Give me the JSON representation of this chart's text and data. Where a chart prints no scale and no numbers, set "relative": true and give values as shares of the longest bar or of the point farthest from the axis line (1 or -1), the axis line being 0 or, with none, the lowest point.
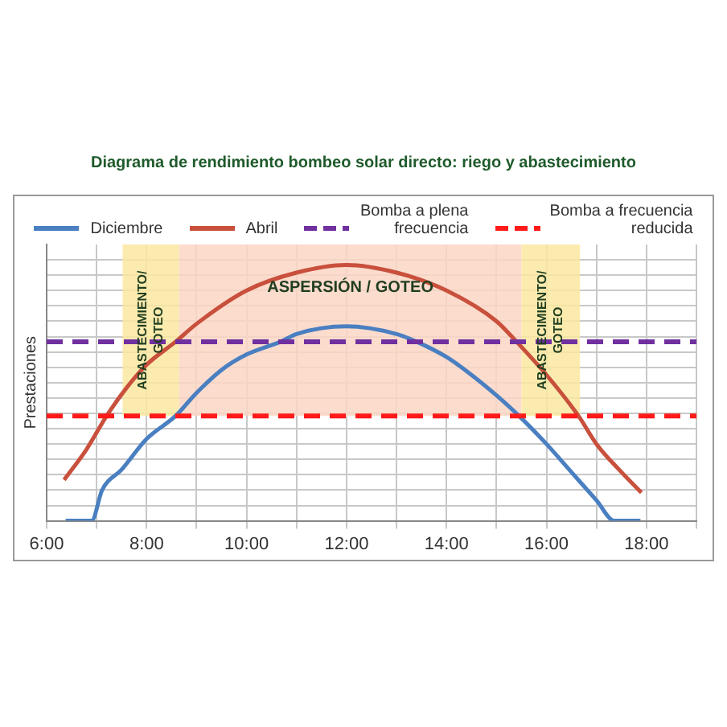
{
  "chart_data": {
    "type": "line",
    "title": "Diagrama de rendimiento bombeo solar directo: riego y abastecimiento",
    "ylabel": "Prestaciones",
    "relative": true,
    "xlim": [
      6,
      19
    ],
    "xticks": [
      {
        "value": 6,
        "label": "6:00"
      },
      {
        "value": 7,
        "label": null
      },
      {
        "value": 8,
        "label": "8:00"
      },
      {
        "value": 9,
        "label": null
      },
      {
        "value": 10,
        "label": "10:00"
      },
      {
        "value": 11,
        "label": null
      },
      {
        "value": 12,
        "label": "12:00"
      },
      {
        "value": 13,
        "label": null
      },
      {
        "value": 14,
        "label": "14:00"
      },
      {
        "value": 15,
        "label": null
      },
      {
        "value": 16,
        "label": "16:00"
      },
      {
        "value": 17,
        "label": null
      },
      {
        "value": 18,
        "label": "18:00"
      },
      {
        "value": 19,
        "label": null
      }
    ],
    "series": [
      {
        "name": "Diciembre",
        "color": "#4a7fc1",
        "x": [
          6.38,
          6.9,
          7.11,
          7.5,
          8,
          8.58,
          9,
          9.5,
          10,
          10.68,
          11,
          12,
          13,
          13.4,
          14,
          14.5,
          15,
          15.45,
          16,
          16.5,
          17,
          17.36,
          17.88
        ],
        "values": [
          0,
          0,
          0.12,
          0.2,
          0.32,
          0.41,
          0.5,
          0.59,
          0.65,
          0.7,
          0.73,
          0.76,
          0.73,
          0.7,
          0.64,
          0.57,
          0.49,
          0.41,
          0.3,
          0.19,
          0.08,
          0,
          0
        ]
      },
      {
        "name": "Abril",
        "color": "#c8503c",
        "x": [
          6.35,
          6.8,
          7.2,
          7.6,
          8,
          8.58,
          9,
          10,
          11,
          12,
          13,
          14,
          15,
          15.4,
          16,
          16.64,
          17,
          17.5,
          17.9
        ],
        "values": [
          0.16,
          0.28,
          0.41,
          0.52,
          0.61,
          0.7,
          0.77,
          0.9,
          0.97,
          1,
          0.97,
          0.9,
          0.78,
          0.7,
          0.57,
          0.41,
          0.3,
          0.19,
          0.11
        ]
      }
    ],
    "ref_lines": [
      {
        "axis": "y",
        "value": 0.7,
        "label": "Bomba a plena frecuencia",
        "color": "#7030a0",
        "line_style": "dashed"
      },
      {
        "axis": "y",
        "value": 0.41,
        "label": "Bomba a frecuencia reducida",
        "color": "#ff1a1a",
        "line_style": "dashed"
      }
    ],
    "bands": [
      {
        "axis": "x",
        "from": 7.52,
        "to": 8.65,
        "label": "ABASTECIMIENTO/ GOTEO",
        "color": "#fbe7a1"
      },
      {
        "axis": "x",
        "from": 8.65,
        "to": 15.5,
        "label": "ASPERSIÓN / GOTEO",
        "color": "#fbd6c4"
      },
      {
        "axis": "x",
        "from": 15.5,
        "to": 16.67,
        "label": "ABASTECIMIENTO/ GOTEO",
        "color": "#fbe7a1"
      }
    ],
    "grid": true,
    "legend": "top",
    "marker": "none",
    "line_style": "solid"
  }
}
